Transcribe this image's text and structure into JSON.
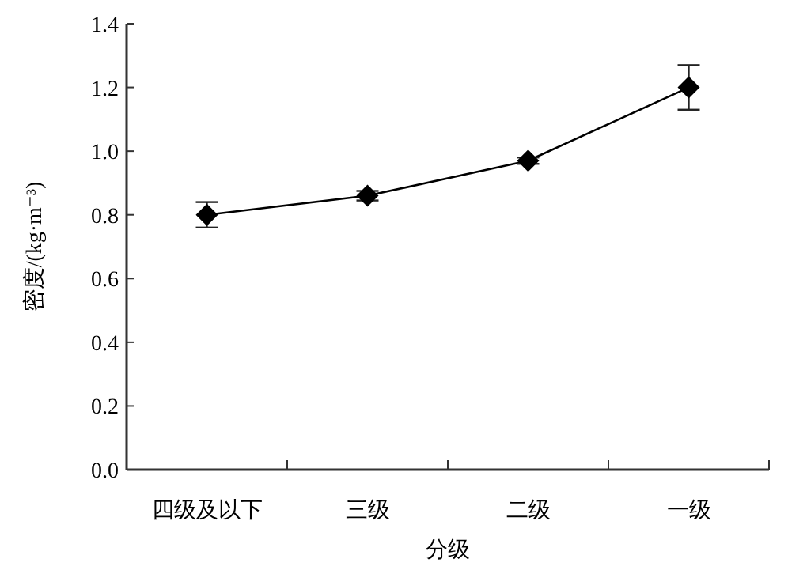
{
  "chart_data": {
    "type": "line",
    "xlabel": "分级",
    "ylabel": "密度/(kg·m⁻³)",
    "categories": [
      "四级及以下",
      "三级",
      "二级",
      "一级"
    ],
    "values": [
      0.8,
      0.86,
      0.97,
      1.2
    ],
    "errors": [
      0.04,
      0.015,
      0.01,
      0.07
    ],
    "color": "#000000",
    "marker": "diamond",
    "line_style": "solid",
    "ylim": [
      0,
      1.4
    ],
    "yticks": [
      {
        "value": 0,
        "label": "0.0"
      },
      0.2,
      0.4,
      0.6,
      0.8,
      {
        "value": 1,
        "label": "1.0"
      },
      1.2,
      1.4
    ]
  }
}
